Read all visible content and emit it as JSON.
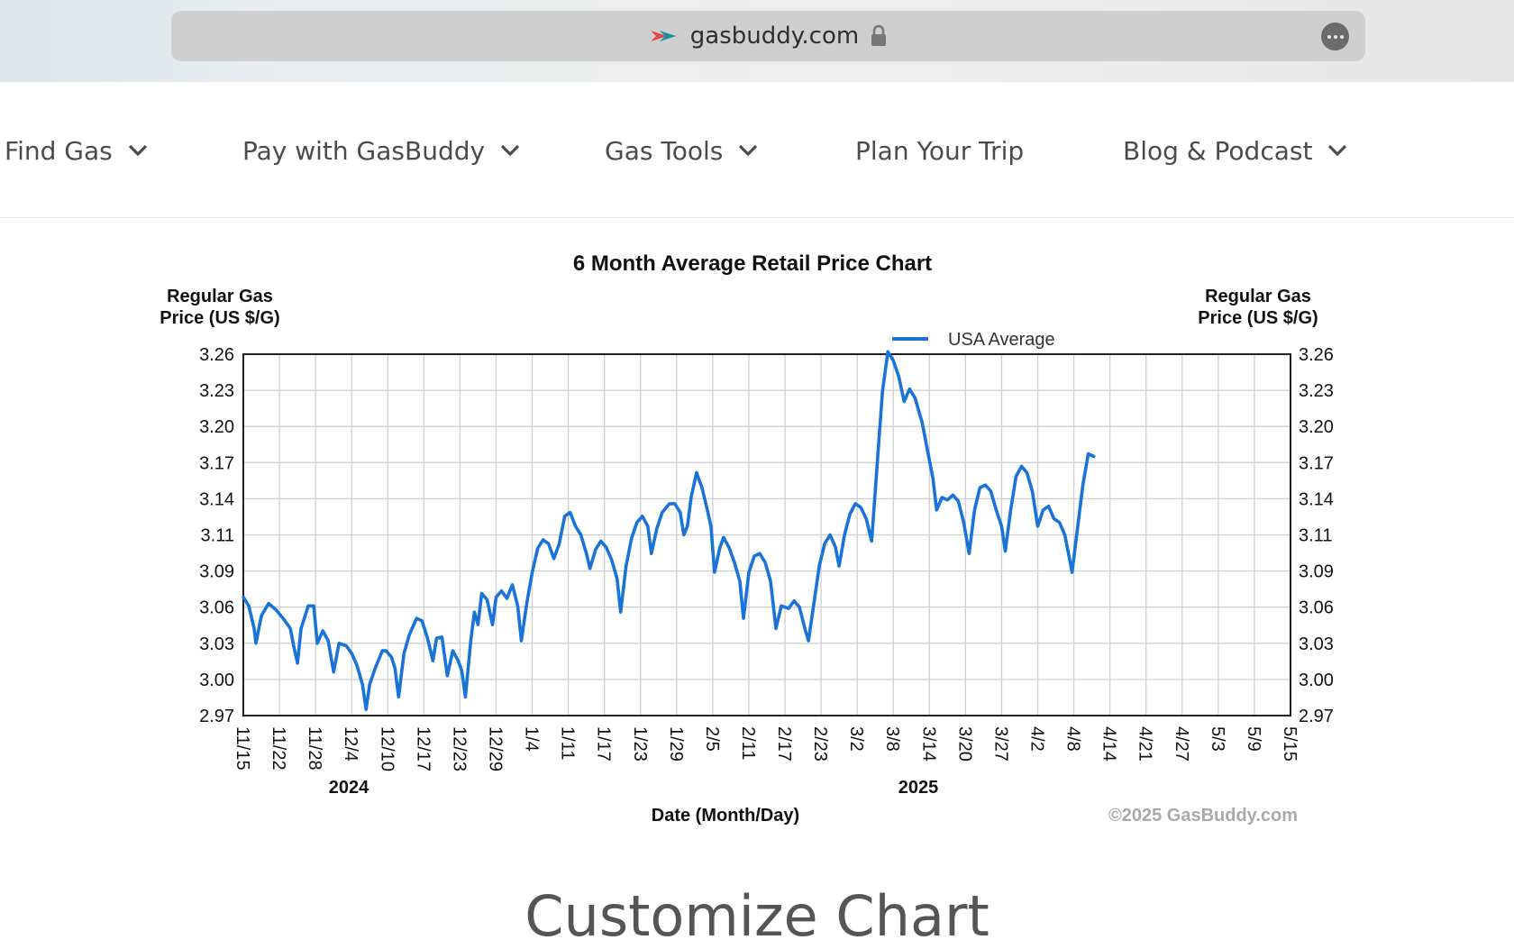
{
  "browser": {
    "url": "gasbuddy.com",
    "favicon_icon": "gasbuddy-logo-icon",
    "lock_icon": "lock-icon",
    "more_icon": "more-options-icon"
  },
  "nav": {
    "items": [
      {
        "label": "Find Gas",
        "has_dropdown": true
      },
      {
        "label": "Pay with GasBuddy",
        "has_dropdown": true
      },
      {
        "label": "Gas Tools",
        "has_dropdown": true
      },
      {
        "label": "Plan Your Trip",
        "has_dropdown": false
      },
      {
        "label": "Blog & Podcast",
        "has_dropdown": true
      }
    ]
  },
  "chart_data": {
    "type": "line",
    "title": "6 Month Average Retail Price Chart",
    "ylabel_left": "Regular Gas Price (US $/G)",
    "ylabel_right": "Regular Gas Price (US $/G)",
    "xlabel": "Date (Month/Day)",
    "copyright": "©2025 GasBuddy.com",
    "legend": {
      "placement": "top-right",
      "entry": "USA Average"
    },
    "year_labels": [
      "2024",
      "2025"
    ],
    "yticks": [
      "2.97",
      "3.00",
      "3.03",
      "3.06",
      "3.09",
      "3.11",
      "3.14",
      "3.17",
      "3.20",
      "3.23",
      "3.26"
    ],
    "ylim": [
      2.97,
      3.26
    ],
    "xticks": [
      "11/15",
      "11/22",
      "11/28",
      "12/4",
      "12/10",
      "12/17",
      "12/23",
      "12/29",
      "1/4",
      "1/11",
      "1/17",
      "1/23",
      "1/29",
      "2/5",
      "2/11",
      "2/17",
      "2/23",
      "3/2",
      "3/8",
      "3/14",
      "3/20",
      "3/27",
      "4/2",
      "4/8",
      "4/14",
      "4/21",
      "4/27",
      "5/3",
      "5/9",
      "5/15"
    ],
    "grid": true,
    "series_color": "#1a73d8",
    "series": [
      {
        "name": "USA Average",
        "points": [
          [
            0,
            3.065
          ],
          [
            0.15,
            3.058
          ],
          [
            0.3,
            3.04
          ],
          [
            0.35,
            3.028
          ],
          [
            0.5,
            3.05
          ],
          [
            0.7,
            3.06
          ],
          [
            0.9,
            3.055
          ],
          [
            1.1,
            3.048
          ],
          [
            1.3,
            3.04
          ],
          [
            1.4,
            3.025
          ],
          [
            1.5,
            3.012
          ],
          [
            1.6,
            3.04
          ],
          [
            1.8,
            3.058
          ],
          [
            1.95,
            3.058
          ],
          [
            2.05,
            3.028
          ],
          [
            2.2,
            3.038
          ],
          [
            2.35,
            3.03
          ],
          [
            2.5,
            3.005
          ],
          [
            2.65,
            3.028
          ],
          [
            2.85,
            3.026
          ],
          [
            3.0,
            3.02
          ],
          [
            3.15,
            3.01
          ],
          [
            3.3,
            2.995
          ],
          [
            3.4,
            2.975
          ],
          [
            3.5,
            2.995
          ],
          [
            3.65,
            3.008
          ],
          [
            3.85,
            3.022
          ],
          [
            3.95,
            3.022
          ],
          [
            4.1,
            3.017
          ],
          [
            4.2,
            3.008
          ],
          [
            4.3,
            2.985
          ],
          [
            4.45,
            3.02
          ],
          [
            4.6,
            3.035
          ],
          [
            4.8,
            3.048
          ],
          [
            4.95,
            3.046
          ],
          [
            5.1,
            3.032
          ],
          [
            5.25,
            3.014
          ],
          [
            5.35,
            3.032
          ],
          [
            5.5,
            3.033
          ],
          [
            5.65,
            3.002
          ],
          [
            5.8,
            3.022
          ],
          [
            5.95,
            3.014
          ],
          [
            6.05,
            3.006
          ],
          [
            6.15,
            2.985
          ],
          [
            6.3,
            3.03
          ],
          [
            6.4,
            3.053
          ],
          [
            6.5,
            3.043
          ],
          [
            6.6,
            3.068
          ],
          [
            6.75,
            3.063
          ],
          [
            6.9,
            3.043
          ],
          [
            7.0,
            3.065
          ],
          [
            7.15,
            3.07
          ],
          [
            7.3,
            3.064
          ],
          [
            7.45,
            3.075
          ],
          [
            7.6,
            3.058
          ],
          [
            7.7,
            3.03
          ],
          [
            7.85,
            3.06
          ],
          [
            8.0,
            3.085
          ],
          [
            8.15,
            3.104
          ],
          [
            8.3,
            3.111
          ],
          [
            8.45,
            3.108
          ],
          [
            8.6,
            3.096
          ],
          [
            8.75,
            3.108
          ],
          [
            8.9,
            3.13
          ],
          [
            9.05,
            3.133
          ],
          [
            9.2,
            3.122
          ],
          [
            9.35,
            3.115
          ],
          [
            9.5,
            3.1
          ],
          [
            9.6,
            3.088
          ],
          [
            9.75,
            3.103
          ],
          [
            9.9,
            3.11
          ],
          [
            10.05,
            3.105
          ],
          [
            10.2,
            3.095
          ],
          [
            10.35,
            3.08
          ],
          [
            10.45,
            3.053
          ],
          [
            10.6,
            3.09
          ],
          [
            10.75,
            3.112
          ],
          [
            10.9,
            3.125
          ],
          [
            11.05,
            3.13
          ],
          [
            11.2,
            3.122
          ],
          [
            11.3,
            3.1
          ],
          [
            11.45,
            3.12
          ],
          [
            11.6,
            3.133
          ],
          [
            11.8,
            3.14
          ],
          [
            11.95,
            3.14
          ],
          [
            12.1,
            3.133
          ],
          [
            12.2,
            3.115
          ],
          [
            12.3,
            3.122
          ],
          [
            12.4,
            3.145
          ],
          [
            12.55,
            3.165
          ],
          [
            12.7,
            3.153
          ],
          [
            12.85,
            3.135
          ],
          [
            12.95,
            3.122
          ],
          [
            13.05,
            3.085
          ],
          [
            13.2,
            3.105
          ],
          [
            13.3,
            3.113
          ],
          [
            13.45,
            3.105
          ],
          [
            13.6,
            3.093
          ],
          [
            13.75,
            3.078
          ],
          [
            13.85,
            3.048
          ],
          [
            14.0,
            3.085
          ],
          [
            14.15,
            3.098
          ],
          [
            14.3,
            3.1
          ],
          [
            14.45,
            3.093
          ],
          [
            14.6,
            3.078
          ],
          [
            14.75,
            3.04
          ],
          [
            14.9,
            3.058
          ],
          [
            15.1,
            3.056
          ],
          [
            15.25,
            3.062
          ],
          [
            15.4,
            3.057
          ],
          [
            15.55,
            3.04
          ],
          [
            15.65,
            3.03
          ],
          [
            15.8,
            3.06
          ],
          [
            15.95,
            3.09
          ],
          [
            16.1,
            3.108
          ],
          [
            16.25,
            3.115
          ],
          [
            16.4,
            3.105
          ],
          [
            16.5,
            3.09
          ],
          [
            16.65,
            3.115
          ],
          [
            16.8,
            3.132
          ],
          [
            16.95,
            3.14
          ],
          [
            17.1,
            3.137
          ],
          [
            17.25,
            3.128
          ],
          [
            17.4,
            3.11
          ],
          [
            17.55,
            3.17
          ],
          [
            17.7,
            3.23
          ],
          [
            17.85,
            3.262
          ],
          [
            18.0,
            3.255
          ],
          [
            18.15,
            3.242
          ],
          [
            18.3,
            3.222
          ],
          [
            18.45,
            3.232
          ],
          [
            18.6,
            3.225
          ],
          [
            18.8,
            3.205
          ],
          [
            19.0,
            3.175
          ],
          [
            19.1,
            3.16
          ],
          [
            19.2,
            3.135
          ],
          [
            19.35,
            3.145
          ],
          [
            19.5,
            3.143
          ],
          [
            19.65,
            3.147
          ],
          [
            19.8,
            3.142
          ],
          [
            19.95,
            3.125
          ],
          [
            20.1,
            3.1
          ],
          [
            20.25,
            3.135
          ],
          [
            20.4,
            3.153
          ],
          [
            20.55,
            3.155
          ],
          [
            20.7,
            3.15
          ],
          [
            20.85,
            3.135
          ],
          [
            21.0,
            3.122
          ],
          [
            21.1,
            3.102
          ],
          [
            21.25,
            3.135
          ],
          [
            21.4,
            3.162
          ],
          [
            21.55,
            3.17
          ],
          [
            21.7,
            3.165
          ],
          [
            21.85,
            3.15
          ],
          [
            22.0,
            3.122
          ],
          [
            22.15,
            3.135
          ],
          [
            22.3,
            3.138
          ],
          [
            22.45,
            3.128
          ],
          [
            22.6,
            3.125
          ],
          [
            22.75,
            3.115
          ],
          [
            22.85,
            3.1
          ],
          [
            22.95,
            3.085
          ],
          [
            23.1,
            3.12
          ],
          [
            23.25,
            3.155
          ],
          [
            23.4,
            3.18
          ],
          [
            23.55,
            3.178
          ]
        ]
      }
    ]
  },
  "footer": {
    "customize_title": "Customize Chart"
  }
}
